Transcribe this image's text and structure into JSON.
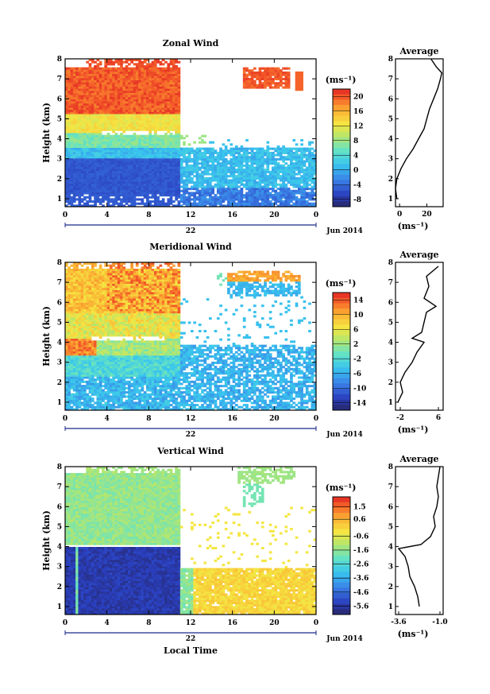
{
  "panels": [
    {
      "title": "Zonal Wind",
      "ylabel": "Height (km)",
      "unit": "(ms⁻¹)",
      "colorbar_ticks": [
        "20",
        "16",
        "12",
        "8",
        "4",
        "0",
        "-4",
        "-8"
      ],
      "avg_title": "Average",
      "avg_xticks": [
        "0",
        "20"
      ],
      "avg_xlabel": "(ms⁻¹)",
      "date_label": "22",
      "month_label": "Jun 2014"
    },
    {
      "title": "Meridional Wind",
      "ylabel": "Height (km)",
      "unit": "(ms⁻¹)",
      "colorbar_ticks": [
        "14",
        "10",
        "6",
        "2",
        "-2",
        "-6",
        "-10",
        "-14"
      ],
      "avg_title": "Average",
      "avg_xticks": [
        "-2",
        "6"
      ],
      "avg_xlabel": "(ms⁻¹)",
      "date_label": "22",
      "month_label": "Jun 2014"
    },
    {
      "title": "Vertical Wind",
      "ylabel": "Height (km)",
      "unit": "(ms⁻¹)",
      "colorbar_ticks": [
        "1.5",
        "0.6",
        "-0.6",
        "-1.6",
        "-2.6",
        "-3.6",
        "-4.6",
        "-5.6"
      ],
      "avg_title": "Average",
      "avg_xticks": [
        "-3.6",
        "-1.0"
      ],
      "avg_xlabel": "(ms⁻¹)",
      "date_label": "22",
      "month_label": "Jun 2014"
    }
  ],
  "xlabel_bottom": "Local Time",
  "chart_data": [
    {
      "type": "heatmap",
      "title": "Zonal Wind",
      "x_ticks": [
        "0",
        "4",
        "8",
        "12",
        "16",
        "20",
        "0"
      ],
      "y_ticks": [
        "1",
        "2",
        "3",
        "4",
        "5",
        "6",
        "7",
        "8"
      ],
      "xlim": [
        0,
        24
      ],
      "ylim": [
        0.6,
        8.0
      ],
      "clim": [
        -10,
        22
      ],
      "colorbar_ticks": [
        20,
        16,
        12,
        8,
        4,
        0,
        -4,
        -8
      ],
      "avg_profile": {
        "xlim": [
          -3,
          32
        ],
        "x_ticks": [
          0,
          20
        ],
        "height_km": [
          1.0,
          1.5,
          2.0,
          2.5,
          3.0,
          3.5,
          4.0,
          4.5,
          5.0,
          5.5,
          6.0,
          6.5,
          7.0,
          7.3,
          7.6,
          8.0
        ],
        "value": [
          -2,
          -3,
          -2,
          1,
          5,
          10,
          14,
          18,
          20,
          22,
          25,
          28,
          30,
          31,
          27,
          23
        ]
      }
    },
    {
      "type": "heatmap",
      "title": "Meridional Wind",
      "x_ticks": [
        "0",
        "4",
        "8",
        "12",
        "16",
        "20",
        "0"
      ],
      "y_ticks": [
        "1",
        "2",
        "3",
        "4",
        "5",
        "6",
        "7",
        "8"
      ],
      "xlim": [
        0,
        24
      ],
      "ylim": [
        0.6,
        8.0
      ],
      "clim": [
        -16,
        16
      ],
      "colorbar_ticks": [
        14,
        10,
        6,
        2,
        -2,
        -6,
        -10,
        -14
      ],
      "avg_profile": {
        "xlim": [
          -3,
          7
        ],
        "x_ticks": [
          -2,
          6
        ],
        "height_km": [
          1.0,
          1.5,
          2.0,
          2.5,
          3.0,
          3.5,
          4.0,
          4.2,
          4.5,
          5.0,
          5.5,
          5.8,
          6.2,
          6.8,
          7.3,
          7.8
        ],
        "value": [
          -2.5,
          -1.5,
          -2.0,
          -1.0,
          0.5,
          1.5,
          3.0,
          0.5,
          2.5,
          3.0,
          3.5,
          5.5,
          3.0,
          4.0,
          3.5,
          6.0
        ]
      }
    },
    {
      "type": "heatmap",
      "title": "Vertical Wind",
      "x_ticks": [
        "0",
        "4",
        "8",
        "12",
        "16",
        "20",
        "0"
      ],
      "y_ticks": [
        "1",
        "2",
        "3",
        "4",
        "5",
        "6",
        "7",
        "8"
      ],
      "xlim": [
        0,
        24
      ],
      "ylim": [
        0.6,
        8.0
      ],
      "clim": [
        -6.2,
        2.2
      ],
      "colorbar_ticks": [
        1.5,
        0.6,
        -0.6,
        -1.6,
        -2.6,
        -3.6,
        -4.6,
        -5.6
      ],
      "avg_profile": {
        "xlim": [
          -3.8,
          -0.8
        ],
        "x_ticks": [
          -3.6,
          -1.0
        ],
        "height_km": [
          1.0,
          1.5,
          2.0,
          2.5,
          3.0,
          3.5,
          3.9,
          4.1,
          4.5,
          5.0,
          5.5,
          6.0,
          6.5,
          7.0,
          7.5,
          8.0
        ],
        "value": [
          -2.3,
          -2.4,
          -2.6,
          -2.9,
          -3.0,
          -3.2,
          -3.6,
          -2.2,
          -1.6,
          -1.3,
          -1.4,
          -1.2,
          -1.1,
          -1.2,
          -1.1,
          -1.0
        ]
      }
    }
  ]
}
